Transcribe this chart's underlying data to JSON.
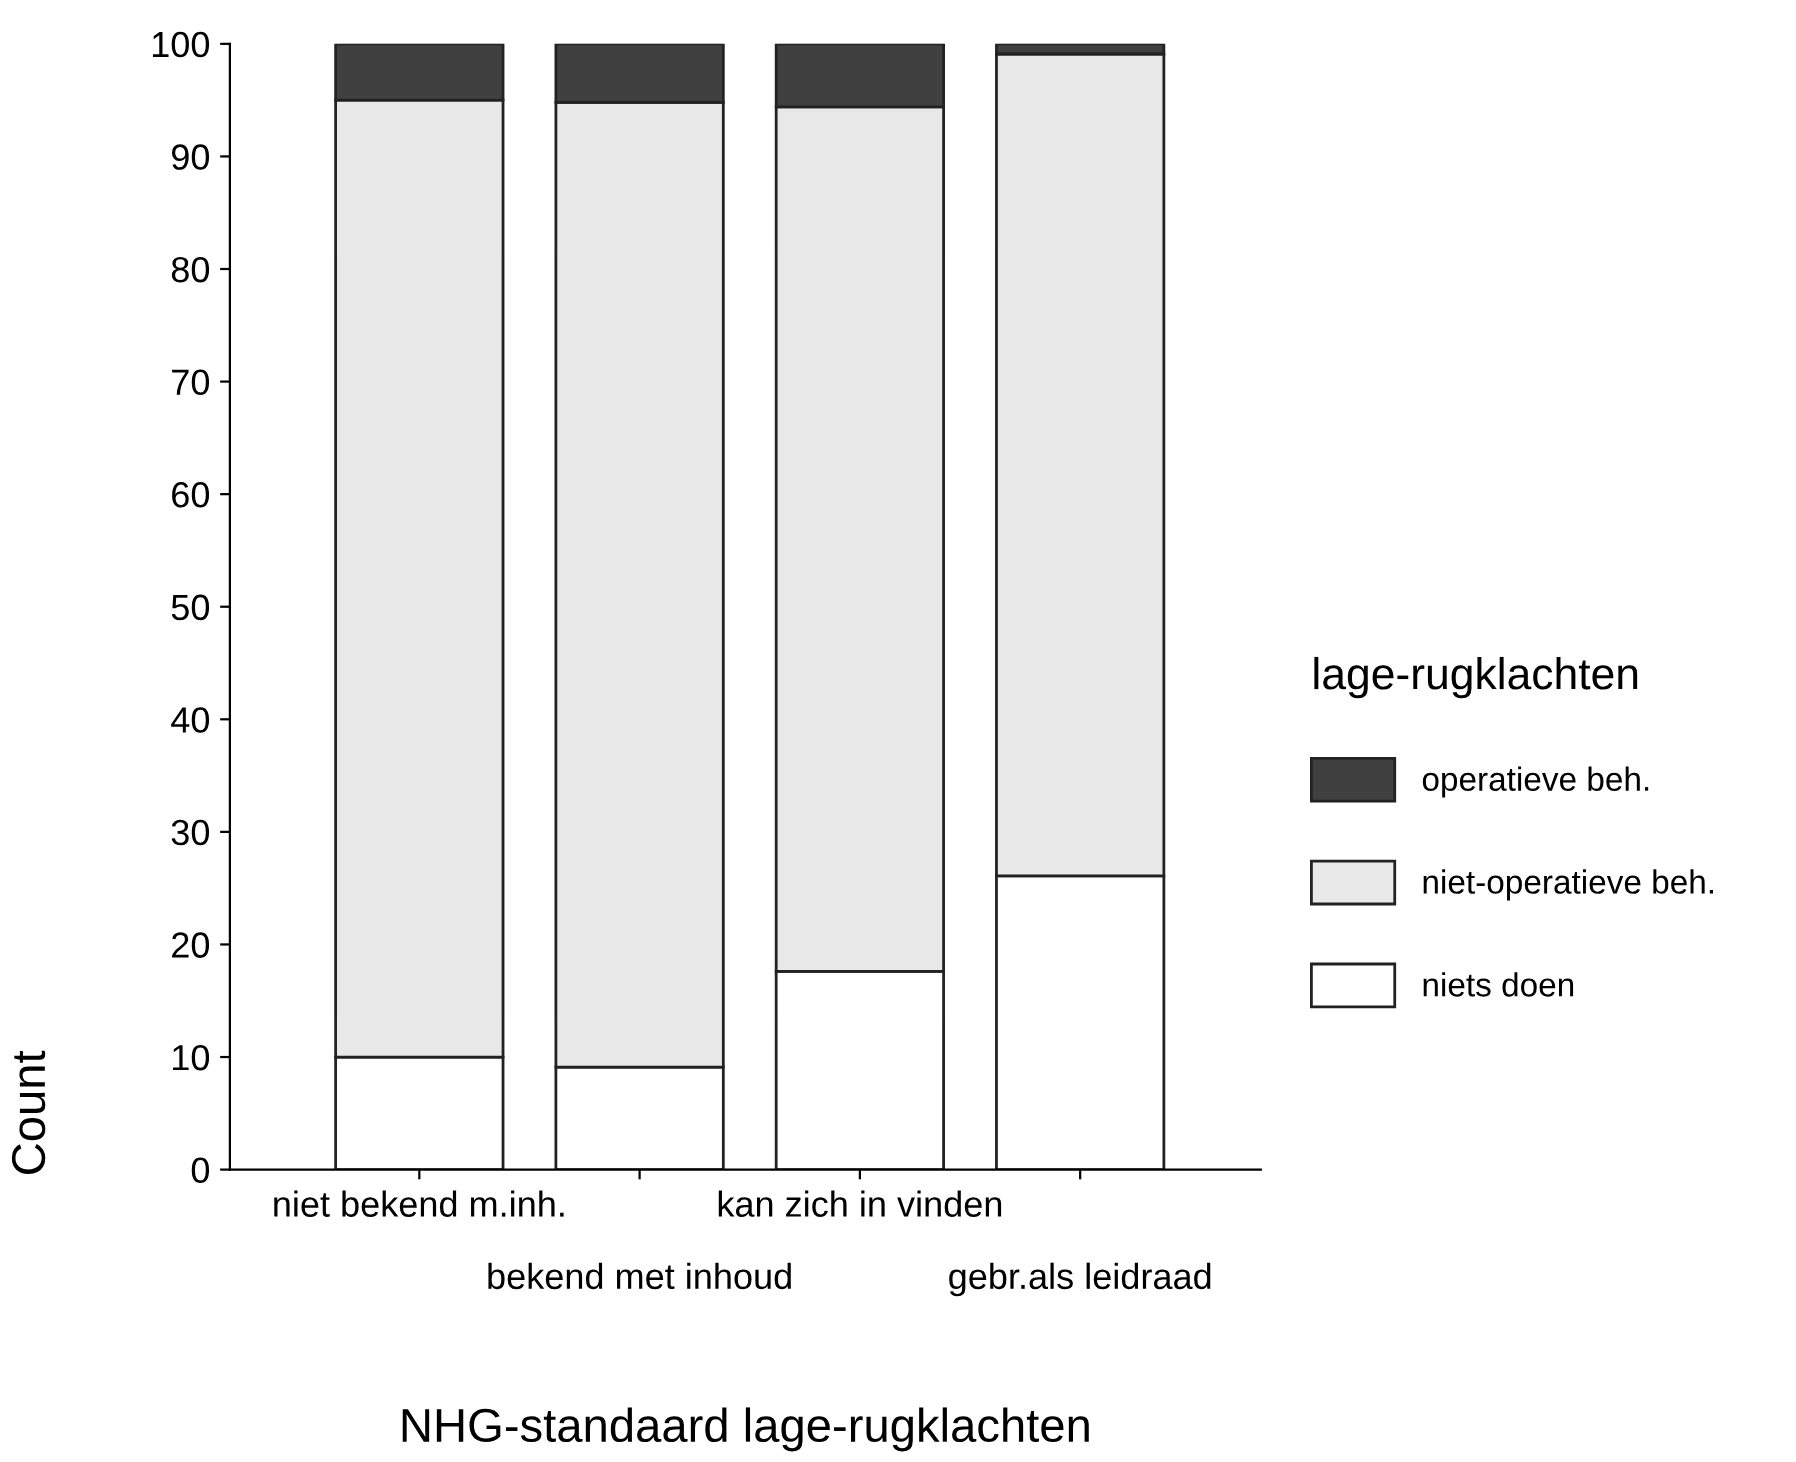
{
  "chart_data": {
    "type": "bar",
    "stacked": true,
    "xlabel": "NHG-standaard lage-rugklachten",
    "ylabel": "Count",
    "legend_title": "lage-rugklachten",
    "categories": [
      "niet bekend m.inh.",
      "bekend met inhoud",
      "kan zich in vinden",
      "gebr.als leidraad"
    ],
    "series": [
      {
        "name": "niets doen",
        "color": "#ffffff",
        "values": [
          10,
          9.1,
          17.6,
          26.1
        ]
      },
      {
        "name": "niet-operatieve beh.",
        "color": "#e8e8e8",
        "values": [
          85,
          85.7,
          76.8,
          73
        ]
      },
      {
        "name": "operatieve beh.",
        "color": "#404040",
        "values": [
          5,
          5.2,
          5.6,
          0.9
        ]
      }
    ],
    "ylim": [
      0,
      100
    ],
    "yticks": [
      0,
      10,
      20,
      30,
      40,
      50,
      60,
      70,
      80,
      90,
      100
    ],
    "grid": false,
    "legend": "right"
  }
}
